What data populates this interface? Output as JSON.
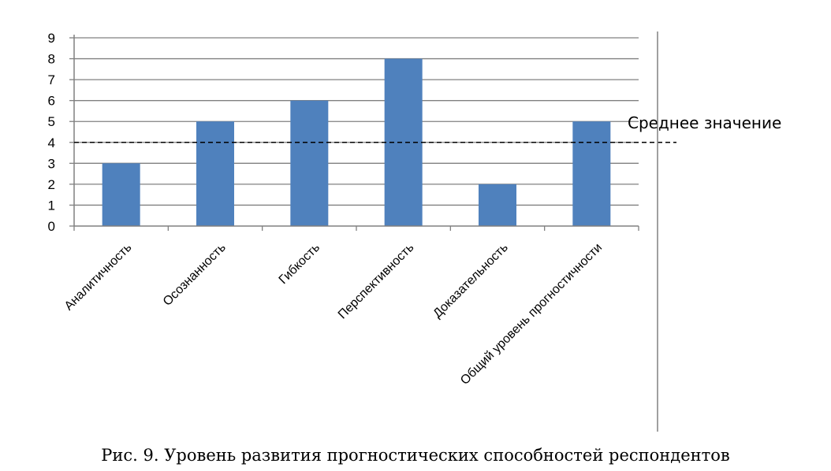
{
  "caption": "Рис. 9. Уровень развития прогностических способностей респондентов",
  "chart_data": {
    "type": "bar",
    "categories": [
      "Аналитичность",
      "Осознанность",
      "Гибкость",
      "Перспективность",
      "Доказательность",
      "Общий уровень прогностичности"
    ],
    "values": [
      3,
      5,
      6,
      8,
      2,
      5
    ],
    "ylim": [
      0,
      9
    ],
    "yticks": [
      0,
      1,
      2,
      3,
      4,
      5,
      6,
      7,
      8,
      9
    ],
    "grid": true,
    "legend": "none",
    "bar_color": "#4f81bd",
    "reference_line": {
      "value": 4,
      "label": "Среднее значение",
      "style": "dashed"
    }
  }
}
